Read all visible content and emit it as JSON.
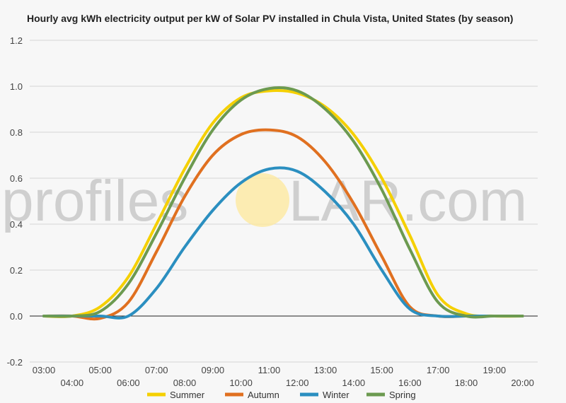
{
  "chart_data": {
    "type": "line",
    "title": "Hourly avg kWh electricity output per kW of Solar PV installed in Chula Vista, United States (by season)",
    "xlabel": "",
    "ylabel": "",
    "x": [
      "03:00",
      "04:00",
      "05:00",
      "06:00",
      "07:00",
      "08:00",
      "09:00",
      "10:00",
      "11:00",
      "12:00",
      "13:00",
      "14:00",
      "15:00",
      "16:00",
      "17:00",
      "18:00",
      "19:00",
      "20:00"
    ],
    "ylim": [
      -0.2,
      1.2
    ],
    "yticks": [
      "-0.2",
      "0.0",
      "0.2",
      "0.4",
      "0.6",
      "0.8",
      "1.0",
      "1.2"
    ],
    "grid": true,
    "legend_position": "bottom",
    "series": [
      {
        "name": "Summer",
        "color": "#f5d000",
        "values": [
          0.0,
          0.0,
          0.04,
          0.17,
          0.4,
          0.64,
          0.84,
          0.95,
          0.98,
          0.97,
          0.91,
          0.79,
          0.6,
          0.35,
          0.09,
          0.01,
          0.0,
          0.0
        ]
      },
      {
        "name": "Autumn",
        "color": "#e07020",
        "values": [
          0.0,
          0.0,
          -0.01,
          0.06,
          0.28,
          0.52,
          0.7,
          0.79,
          0.81,
          0.78,
          0.67,
          0.49,
          0.26,
          0.04,
          0.0,
          0.0,
          0.0,
          0.0
        ]
      },
      {
        "name": "Winter",
        "color": "#2b8fc0",
        "values": [
          0.0,
          0.0,
          0.0,
          0.0,
          0.12,
          0.3,
          0.46,
          0.58,
          0.64,
          0.63,
          0.54,
          0.4,
          0.2,
          0.03,
          0.0,
          0.0,
          0.0,
          0.0
        ]
      },
      {
        "name": "Spring",
        "color": "#6c9a50",
        "values": [
          0.0,
          0.0,
          0.02,
          0.14,
          0.36,
          0.6,
          0.81,
          0.94,
          0.99,
          0.98,
          0.9,
          0.76,
          0.55,
          0.29,
          0.06,
          0.0,
          0.0,
          0.0
        ]
      }
    ]
  },
  "watermark": {
    "left": "profiles",
    "right": "LAR.com"
  }
}
